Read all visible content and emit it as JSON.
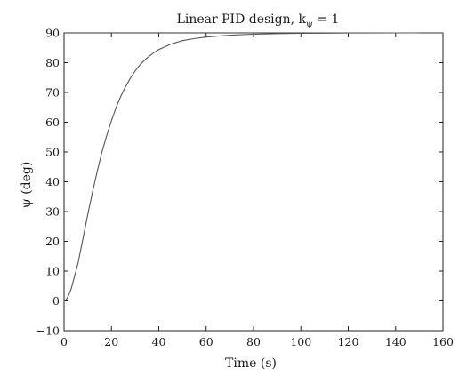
{
  "chart_data": {
    "type": "line",
    "title": "Linear PID design, k",
    "title_subscript": "ψ",
    "title_suffix": " = 1",
    "xlabel": "Time (s)",
    "ylabel": "ψ (deg)",
    "xlim": [
      0,
      160
    ],
    "ylim": [
      -10,
      90
    ],
    "xticks": [
      0,
      20,
      40,
      60,
      80,
      100,
      120,
      140,
      160
    ],
    "yticks": [
      -10,
      0,
      10,
      20,
      30,
      40,
      50,
      60,
      70,
      80,
      90
    ],
    "xtick_labels": [
      "0",
      "20",
      "40",
      "60",
      "80",
      "100",
      "120",
      "140",
      "160"
    ],
    "ytick_labels": [
      "−10",
      "0",
      "10",
      "20",
      "30",
      "40",
      "50",
      "60",
      "70",
      "80",
      "90"
    ],
    "grid": false,
    "series": [
      {
        "x": [
          0,
          1,
          2,
          3,
          4,
          6,
          8,
          10,
          12,
          14,
          16,
          18,
          20,
          22,
          24,
          26,
          28,
          30,
          32,
          35,
          38,
          40,
          45,
          50,
          55,
          60,
          65,
          70,
          75,
          80,
          90,
          100,
          110,
          120,
          130,
          140,
          150
        ],
        "y": [
          0,
          0.5,
          2,
          4,
          7,
          13,
          21,
          29,
          36.5,
          43.5,
          50,
          55.5,
          60.5,
          65,
          68.8,
          72,
          74.8,
          77.2,
          79.2,
          81.6,
          83.4,
          84.4,
          86.2,
          87.4,
          88.1,
          88.6,
          88.95,
          89.2,
          89.4,
          89.55,
          89.75,
          89.85,
          89.92,
          89.96,
          89.98,
          90,
          90
        ],
        "color": "#555555"
      }
    ],
    "reference_line": {
      "y": 90,
      "color": "#333333"
    }
  }
}
